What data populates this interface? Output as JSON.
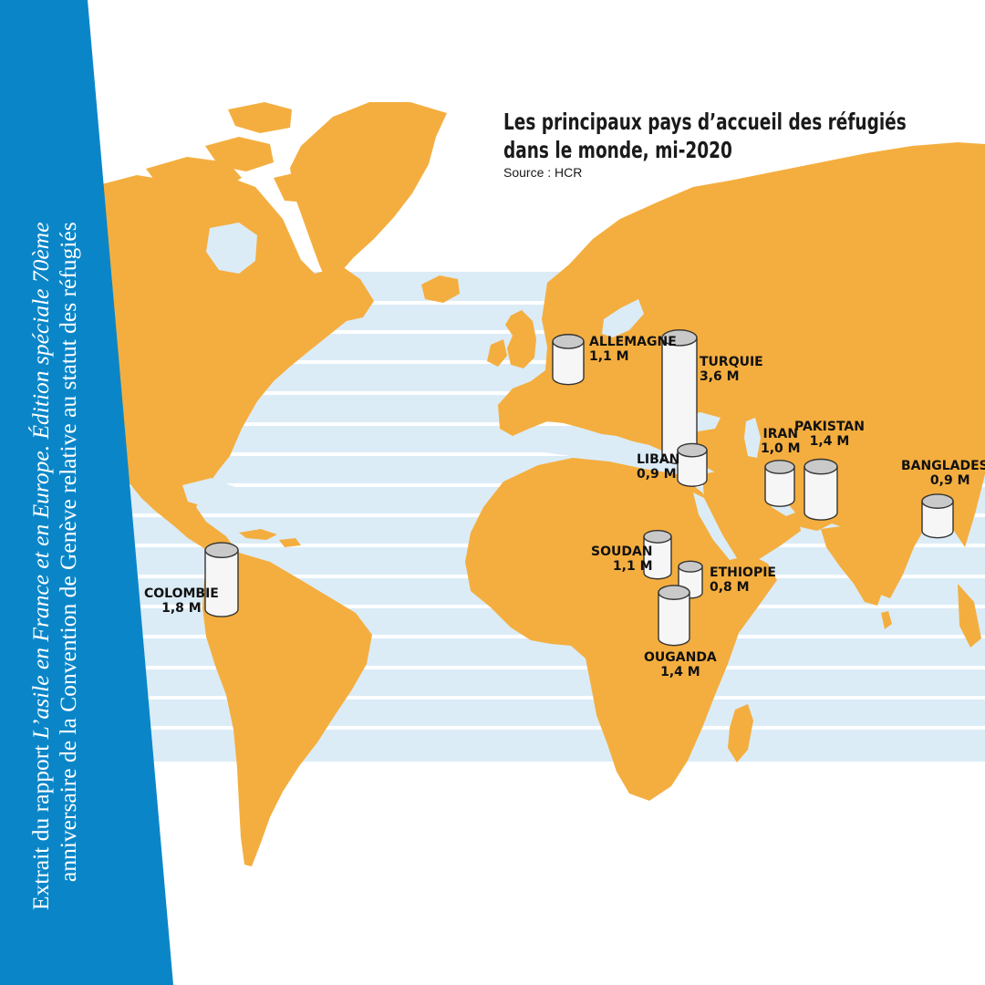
{
  "title": {
    "line1": "Les principaux pays d’accueil des réfugiés",
    "line2": "dans le monde, mi-2020",
    "source": "Source : HCR"
  },
  "ribbon": {
    "line1_prefix": "Extrait du rapport ",
    "line1_italic": "L’asile en France et en Europe. Édition spéciale 70ème",
    "line2": "anniversaire de la Convention de Genève relative au statut des réfugiés"
  },
  "colors": {
    "ribbon": "#0a86c8",
    "land": "#f4ae3f",
    "latitude_band": "#dbecf7",
    "text": "#111111"
  },
  "chart_data": {
    "type": "map",
    "unit": "M",
    "countries": [
      {
        "name": "ALLEMAGNE",
        "value": 1.1,
        "label": "1,1 M"
      },
      {
        "name": "TURQUIE",
        "value": 3.6,
        "label": "3,6 M"
      },
      {
        "name": "LIBAN",
        "value": 0.9,
        "label": "0,9 M"
      },
      {
        "name": "IRAN",
        "value": 1.0,
        "label": "1,0 M"
      },
      {
        "name": "PAKISTAN",
        "value": 1.4,
        "label": "1,4 M"
      },
      {
        "name": "BANGLADESH",
        "value": 0.9,
        "label": "0,9 M"
      },
      {
        "name": "SOUDAN",
        "value": 1.1,
        "label": "1,1 M"
      },
      {
        "name": "ETHIOPIE",
        "value": 0.8,
        "label": "0,8 M"
      },
      {
        "name": "OUGANDA",
        "value": 1.4,
        "label": "1,4 M"
      },
      {
        "name": "COLOMBIE",
        "value": 1.8,
        "label": "1,8 M"
      }
    ]
  }
}
